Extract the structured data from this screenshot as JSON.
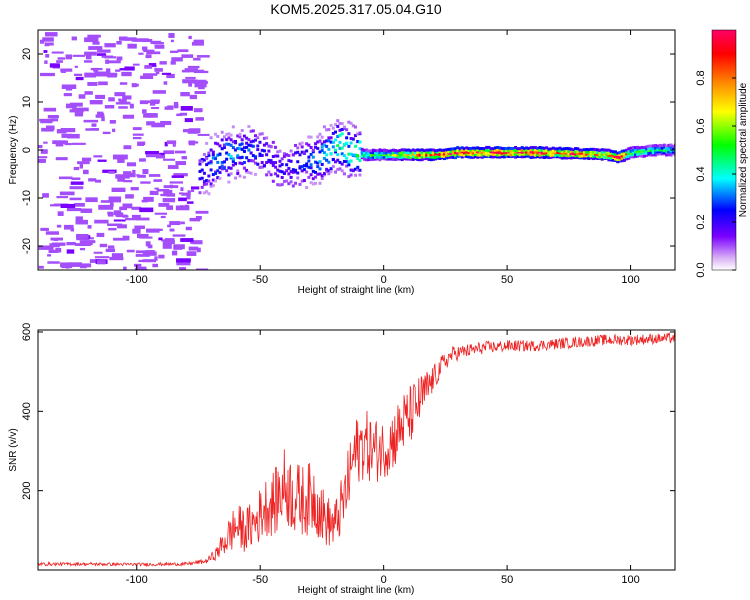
{
  "title": "KOM5.2025.317.05.04.G10",
  "chart_data": [
    {
      "type": "heatmap",
      "xlabel": "Height of straight line (km)",
      "ylabel": "Frequency (Hz)",
      "xlim": [
        -140,
        118
      ],
      "ylim": [
        -25,
        25
      ],
      "xticks": [
        -100,
        -50,
        0,
        50,
        100
      ],
      "yticks": [
        -20,
        -10,
        0,
        10,
        20
      ],
      "colorbar": {
        "label": "Normalized spectral amplitude",
        "range": [
          0,
          1
        ],
        "ticks": [
          0.0,
          0.2,
          0.4,
          0.6,
          0.8
        ],
        "tick_labels": [
          "0.0",
          "0.2",
          "0.4",
          "0.6",
          "0.8"
        ],
        "colors": [
          "#ffffff",
          "#d9b0f5",
          "#7a00ff",
          "#0000ff",
          "#00ffff",
          "#00ff00",
          "#ffff00",
          "#ff8800",
          "#ff0000",
          "#ff0066"
        ]
      },
      "trace": {
        "x": [
          -75,
          -68,
          -62,
          -55,
          -48,
          -42,
          -35,
          -28,
          -22,
          -18,
          -14,
          -8,
          0,
          10,
          20,
          30,
          40,
          50,
          60,
          70,
          80,
          90,
          95,
          100,
          110,
          118
        ],
        "freq": [
          -5,
          -2,
          -1,
          0,
          -1,
          -4,
          -3,
          -2,
          0,
          1,
          0,
          -1,
          -1,
          -1,
          -1,
          -0.5,
          -0.5,
          -0.5,
          -0.5,
          -0.6,
          -0.8,
          -1,
          -1.5,
          -0.5,
          0,
          0
        ],
        "amplitude": [
          0.2,
          0.3,
          0.3,
          0.25,
          0.2,
          0.2,
          0.2,
          0.3,
          0.35,
          0.4,
          0.4,
          0.45,
          0.5,
          0.7,
          0.8,
          0.9,
          0.85,
          0.9,
          0.9,
          0.8,
          0.85,
          0.7,
          0.95,
          0.5,
          0.45,
          0.4
        ]
      },
      "noise_region": {
        "x_range": [
          -140,
          -75
        ],
        "freq_range": [
          -25,
          25
        ],
        "amplitude": 0.1
      }
    },
    {
      "type": "line",
      "xlabel": "Height of straight line (km)",
      "ylabel": "SNR (v/v)",
      "xlim": [
        -140,
        118
      ],
      "ylim": [
        0,
        605
      ],
      "xticks": [
        -100,
        -50,
        0,
        50,
        100
      ],
      "yticks": [
        200,
        400,
        600
      ],
      "color": "#ee2222",
      "series": [
        {
          "name": "SNR",
          "x": [
            -140,
            -120,
            -100,
            -80,
            -72,
            -68,
            -64,
            -60,
            -56,
            -52,
            -48,
            -44,
            -40,
            -36,
            -32,
            -28,
            -24,
            -20,
            -16,
            -12,
            -8,
            -4,
            0,
            4,
            8,
            12,
            16,
            20,
            24,
            28,
            32,
            40,
            50,
            60,
            70,
            80,
            90,
            100,
            110,
            118
          ],
          "y": [
            15,
            15,
            14,
            15,
            22,
            40,
            75,
            110,
            100,
            120,
            160,
            170,
            215,
            180,
            175,
            185,
            130,
            110,
            175,
            290,
            320,
            300,
            305,
            330,
            370,
            400,
            440,
            480,
            520,
            545,
            550,
            560,
            565,
            565,
            570,
            575,
            580,
            580,
            583,
            585
          ],
          "jitter": [
            4,
            4,
            4,
            4,
            6,
            15,
            40,
            60,
            55,
            65,
            75,
            85,
            100,
            95,
            90,
            95,
            70,
            60,
            80,
            90,
            90,
            85,
            75,
            80,
            80,
            75,
            60,
            35,
            25,
            20,
            18,
            16,
            15,
            14,
            14,
            14,
            14,
            14,
            13,
            13
          ]
        }
      ]
    }
  ]
}
